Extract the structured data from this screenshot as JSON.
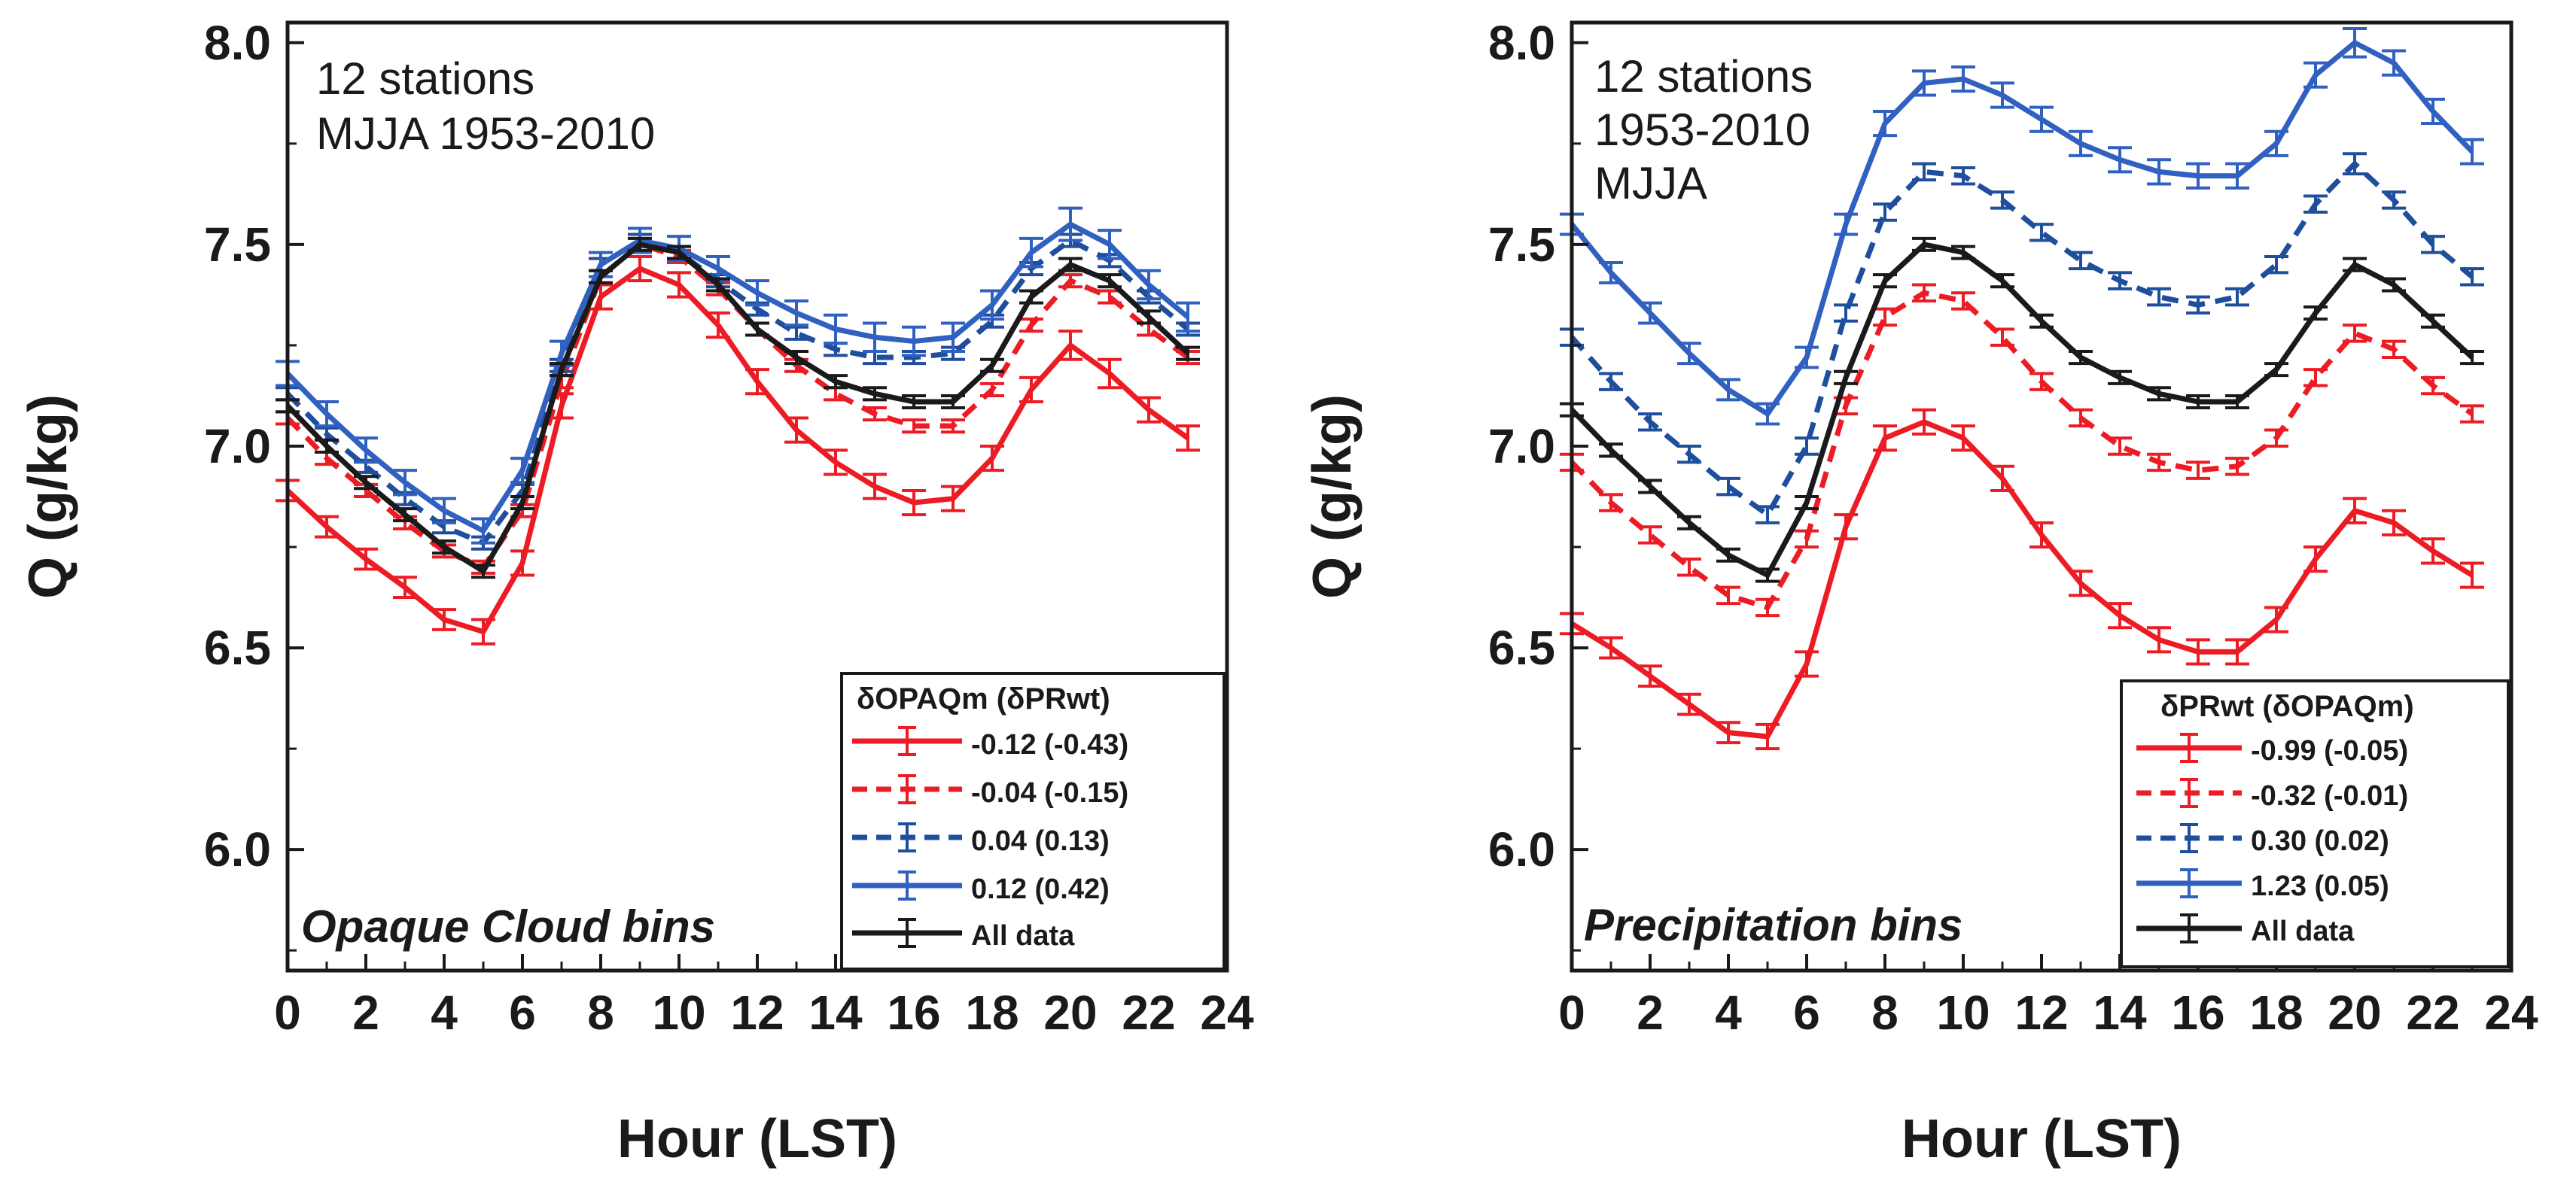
{
  "figure": {
    "background": "#ffffff"
  },
  "chart_data": [
    {
      "type": "line",
      "xlabel": "Hour (LST)",
      "ylabel": "Q (g/kg)",
      "xlim": [
        0,
        24
      ],
      "ylim": [
        5.7,
        8.05
      ],
      "x_ticks": [
        0,
        2,
        4,
        6,
        8,
        10,
        12,
        14,
        16,
        18,
        20,
        22,
        24
      ],
      "y_ticks": [
        6.0,
        6.5,
        7.0,
        7.5,
        8.0
      ],
      "annotation": [
        "12 stations",
        "MJJA 1953-2010"
      ],
      "corner_label": "Opaque Cloud bins",
      "legend_title": "δOPAQm (δPRwt)",
      "legend_position": "bottom-right",
      "x": [
        0,
        1,
        2,
        3,
        4,
        5,
        6,
        7,
        8,
        9,
        10,
        11,
        12,
        13,
        14,
        15,
        16,
        17,
        18,
        19,
        20,
        21,
        22,
        23
      ],
      "series": [
        {
          "name": "-0.12 (-0.43)",
          "color": "#ed1c24",
          "style": "solid",
          "values": [
            6.89,
            6.8,
            6.72,
            6.65,
            6.57,
            6.54,
            6.71,
            7.1,
            7.37,
            7.44,
            7.4,
            7.3,
            7.16,
            7.04,
            6.96,
            6.9,
            6.86,
            6.87,
            6.97,
            7.14,
            7.25,
            7.18,
            7.09,
            7.02
          ],
          "error": [
            0.025,
            0.025,
            0.025,
            0.025,
            0.025,
            0.03,
            0.03,
            0.03,
            0.03,
            0.03,
            0.03,
            0.03,
            0.03,
            0.03,
            0.03,
            0.03,
            0.03,
            0.03,
            0.03,
            0.03,
            0.035,
            0.035,
            0.03,
            0.03
          ]
        },
        {
          "name": "-0.04 (-0.15)",
          "color": "#ed1c24",
          "style": "dashed",
          "values": [
            7.07,
            6.97,
            6.89,
            6.81,
            6.74,
            6.7,
            6.84,
            7.16,
            7.42,
            7.5,
            7.47,
            7.39,
            7.29,
            7.2,
            7.13,
            7.08,
            7.05,
            7.05,
            7.14,
            7.3,
            7.41,
            7.37,
            7.29,
            7.22
          ],
          "error": [
            0.015,
            0.015,
            0.015,
            0.015,
            0.015,
            0.015,
            0.015,
            0.015,
            0.015,
            0.015,
            0.015,
            0.015,
            0.015,
            0.015,
            0.015,
            0.015,
            0.015,
            0.015,
            0.015,
            0.015,
            0.015,
            0.015,
            0.015,
            0.015
          ]
        },
        {
          "name": "0.04 (0.13)",
          "color": "#1f4e9c",
          "style": "dashed",
          "values": [
            7.13,
            7.03,
            6.95,
            6.87,
            6.8,
            6.76,
            6.89,
            7.2,
            7.45,
            7.51,
            7.48,
            7.41,
            7.34,
            7.28,
            7.24,
            7.22,
            7.22,
            7.23,
            7.31,
            7.44,
            7.51,
            7.46,
            7.37,
            7.29
          ],
          "error": [
            0.015,
            0.015,
            0.015,
            0.015,
            0.015,
            0.015,
            0.015,
            0.015,
            0.015,
            0.015,
            0.015,
            0.015,
            0.015,
            0.015,
            0.015,
            0.015,
            0.015,
            0.015,
            0.015,
            0.015,
            0.015,
            0.015,
            0.015,
            0.015
          ]
        },
        {
          "name": "0.12 (0.42)",
          "color": "#3060c0",
          "style": "solid",
          "values": [
            7.18,
            7.08,
            6.99,
            6.91,
            6.84,
            6.79,
            6.94,
            7.23,
            7.45,
            7.51,
            7.49,
            7.44,
            7.38,
            7.33,
            7.29,
            7.27,
            7.26,
            7.27,
            7.35,
            7.48,
            7.55,
            7.5,
            7.4,
            7.32
          ],
          "error": [
            0.03,
            0.03,
            0.03,
            0.03,
            0.03,
            0.03,
            0.03,
            0.03,
            0.03,
            0.03,
            0.03,
            0.03,
            0.03,
            0.03,
            0.035,
            0.035,
            0.035,
            0.035,
            0.035,
            0.035,
            0.04,
            0.035,
            0.035,
            0.035
          ]
        },
        {
          "name": "All data",
          "color": "#1a1a1a",
          "style": "solid",
          "values": [
            7.1,
            7.0,
            6.91,
            6.83,
            6.75,
            6.69,
            6.86,
            7.19,
            7.42,
            7.5,
            7.48,
            7.4,
            7.29,
            7.22,
            7.16,
            7.13,
            7.11,
            7.11,
            7.2,
            7.37,
            7.45,
            7.41,
            7.32,
            7.23
          ],
          "error": [
            0.015,
            0.015,
            0.015,
            0.015,
            0.015,
            0.015,
            0.015,
            0.015,
            0.015,
            0.015,
            0.015,
            0.015,
            0.015,
            0.015,
            0.015,
            0.015,
            0.015,
            0.015,
            0.015,
            0.015,
            0.015,
            0.015,
            0.015,
            0.015
          ]
        }
      ]
    },
    {
      "type": "line",
      "xlabel": "Hour (LST)",
      "ylabel": "Q (g/kg)",
      "xlim": [
        0,
        24
      ],
      "ylim": [
        5.7,
        8.05
      ],
      "x_ticks": [
        0,
        2,
        4,
        6,
        8,
        10,
        12,
        14,
        16,
        18,
        20,
        22,
        24
      ],
      "y_ticks": [
        6.0,
        6.5,
        7.0,
        7.5,
        8.0
      ],
      "annotation": [
        "12 stations",
        "1953-2010",
        "MJJA"
      ],
      "corner_label": "Precipitation bins",
      "legend_title": "δPRwt (δOPAQm)",
      "legend_position": "bottom-right",
      "x": [
        0,
        1,
        2,
        3,
        4,
        5,
        6,
        7,
        8,
        9,
        10,
        11,
        12,
        13,
        14,
        15,
        16,
        17,
        18,
        19,
        20,
        21,
        22,
        23
      ],
      "series": [
        {
          "name": "-0.99 (-0.05)",
          "color": "#ed1c24",
          "style": "solid",
          "values": [
            6.56,
            6.5,
            6.43,
            6.36,
            6.29,
            6.28,
            6.46,
            6.8,
            7.02,
            7.06,
            7.02,
            6.92,
            6.78,
            6.66,
            6.58,
            6.52,
            6.49,
            6.49,
            6.57,
            6.72,
            6.84,
            6.81,
            6.74,
            6.68
          ],
          "error": [
            0.025,
            0.025,
            0.025,
            0.025,
            0.025,
            0.03,
            0.03,
            0.03,
            0.03,
            0.03,
            0.03,
            0.03,
            0.03,
            0.03,
            0.03,
            0.03,
            0.03,
            0.03,
            0.03,
            0.03,
            0.03,
            0.03,
            0.03,
            0.03
          ]
        },
        {
          "name": "-0.32 (-0.01)",
          "color": "#ed1c24",
          "style": "dashed",
          "values": [
            6.96,
            6.86,
            6.78,
            6.7,
            6.63,
            6.6,
            6.77,
            7.1,
            7.32,
            7.38,
            7.36,
            7.27,
            7.16,
            7.07,
            7.0,
            6.96,
            6.94,
            6.95,
            7.02,
            7.17,
            7.28,
            7.24,
            7.15,
            7.08
          ],
          "error": [
            0.02,
            0.02,
            0.02,
            0.02,
            0.02,
            0.02,
            0.02,
            0.02,
            0.02,
            0.02,
            0.02,
            0.02,
            0.02,
            0.02,
            0.02,
            0.02,
            0.02,
            0.02,
            0.02,
            0.02,
            0.02,
            0.02,
            0.02,
            0.02
          ]
        },
        {
          "name": "0.30 (0.02)",
          "color": "#1f4e9c",
          "style": "dashed",
          "values": [
            7.27,
            7.16,
            7.06,
            6.98,
            6.9,
            6.83,
            7.0,
            7.33,
            7.58,
            7.68,
            7.67,
            7.61,
            7.53,
            7.46,
            7.41,
            7.37,
            7.35,
            7.37,
            7.45,
            7.6,
            7.7,
            7.61,
            7.5,
            7.42
          ],
          "error": [
            0.02,
            0.02,
            0.02,
            0.02,
            0.02,
            0.02,
            0.02,
            0.02,
            0.02,
            0.02,
            0.02,
            0.02,
            0.02,
            0.02,
            0.02,
            0.02,
            0.02,
            0.02,
            0.02,
            0.02,
            0.025,
            0.02,
            0.02,
            0.02
          ]
        },
        {
          "name": "1.23 (0.05)",
          "color": "#3060c0",
          "style": "solid",
          "values": [
            7.55,
            7.43,
            7.33,
            7.23,
            7.14,
            7.08,
            7.22,
            7.55,
            7.8,
            7.9,
            7.91,
            7.87,
            7.81,
            7.75,
            7.71,
            7.68,
            7.67,
            7.67,
            7.75,
            7.92,
            8.0,
            7.95,
            7.83,
            7.73
          ],
          "error": [
            0.025,
            0.025,
            0.025,
            0.025,
            0.025,
            0.025,
            0.025,
            0.025,
            0.03,
            0.03,
            0.03,
            0.03,
            0.03,
            0.03,
            0.03,
            0.03,
            0.03,
            0.03,
            0.03,
            0.03,
            0.035,
            0.03,
            0.03,
            0.03
          ]
        },
        {
          "name": "All data",
          "color": "#1a1a1a",
          "style": "solid",
          "values": [
            7.09,
            6.99,
            6.9,
            6.81,
            6.73,
            6.68,
            6.86,
            7.17,
            7.41,
            7.5,
            7.48,
            7.41,
            7.31,
            7.22,
            7.17,
            7.13,
            7.11,
            7.11,
            7.19,
            7.33,
            7.45,
            7.4,
            7.31,
            7.22
          ],
          "error": [
            0.015,
            0.015,
            0.015,
            0.015,
            0.015,
            0.015,
            0.015,
            0.015,
            0.015,
            0.015,
            0.015,
            0.015,
            0.015,
            0.015,
            0.015,
            0.015,
            0.015,
            0.015,
            0.015,
            0.015,
            0.015,
            0.015,
            0.015,
            0.015
          ]
        }
      ]
    }
  ]
}
